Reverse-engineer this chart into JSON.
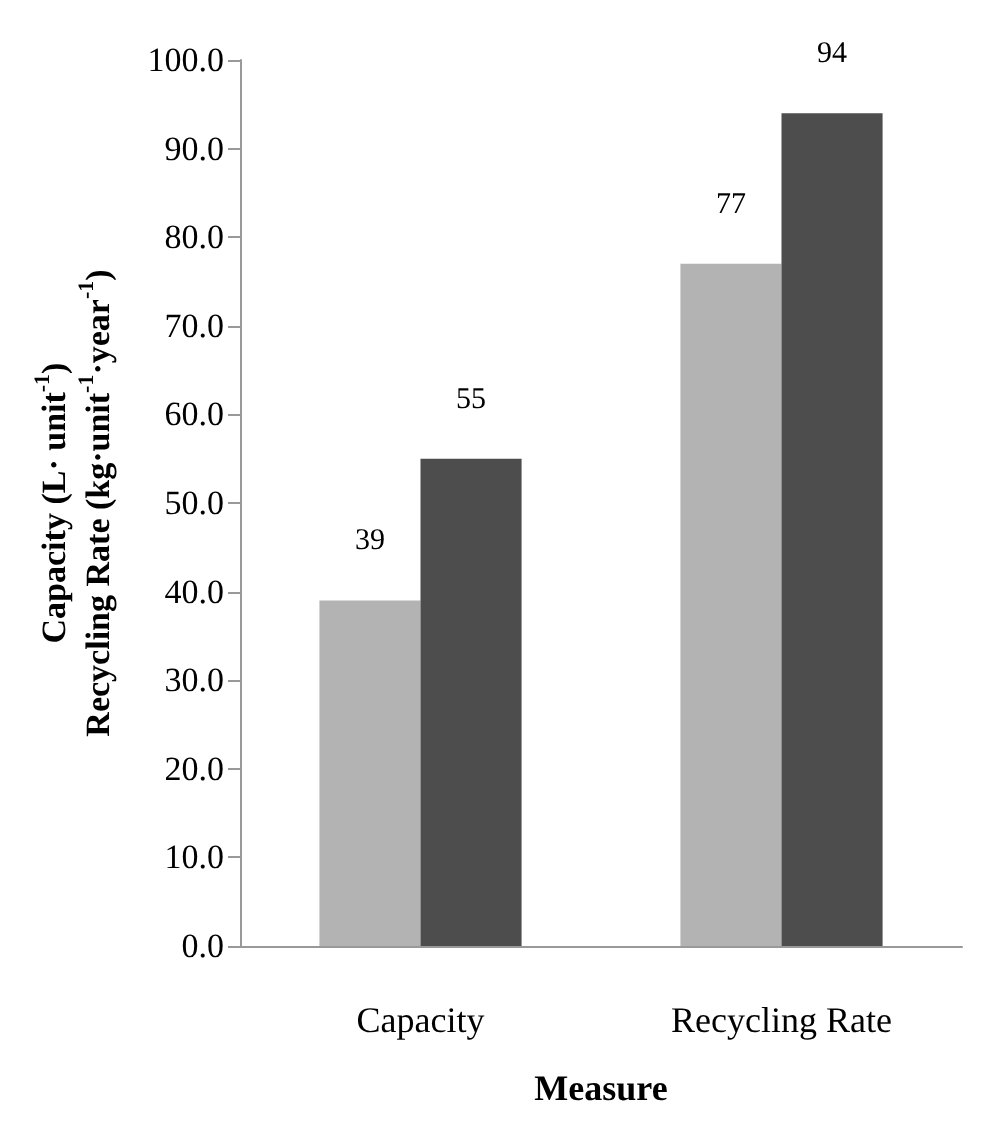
{
  "chart_data": {
    "type": "bar",
    "xlabel": "Measure",
    "ylabel": "Capacity (L· unit$^{-1}$)\nRecycling Rate (kg·unit$^{-1}$·year$^{-1}$)",
    "categories": [
      "Capacity",
      "Recycling Rate"
    ],
    "series": [
      {
        "color": "#b3b3b3",
        "values": [
          39,
          77
        ]
      },
      {
        "color": "#4d4d4d",
        "values": [
          55,
          94
        ]
      }
    ],
    "ylim": [
      0,
      100
    ],
    "yticks": [
      {
        "value": 0,
        "label": "0.0"
      },
      {
        "value": 10,
        "label": "10.0"
      },
      {
        "value": 20,
        "label": "20.0"
      },
      {
        "value": 30,
        "label": "30.0"
      },
      {
        "value": 40,
        "label": "40.0"
      },
      {
        "value": 50,
        "label": "50.0"
      },
      {
        "value": 60,
        "label": "60.0"
      },
      {
        "value": 70,
        "label": "70.0"
      },
      {
        "value": 80,
        "label": "80.0"
      },
      {
        "value": 90,
        "label": "90.0"
      },
      {
        "value": 100,
        "label": "100.0"
      }
    ],
    "data_labels": true
  }
}
